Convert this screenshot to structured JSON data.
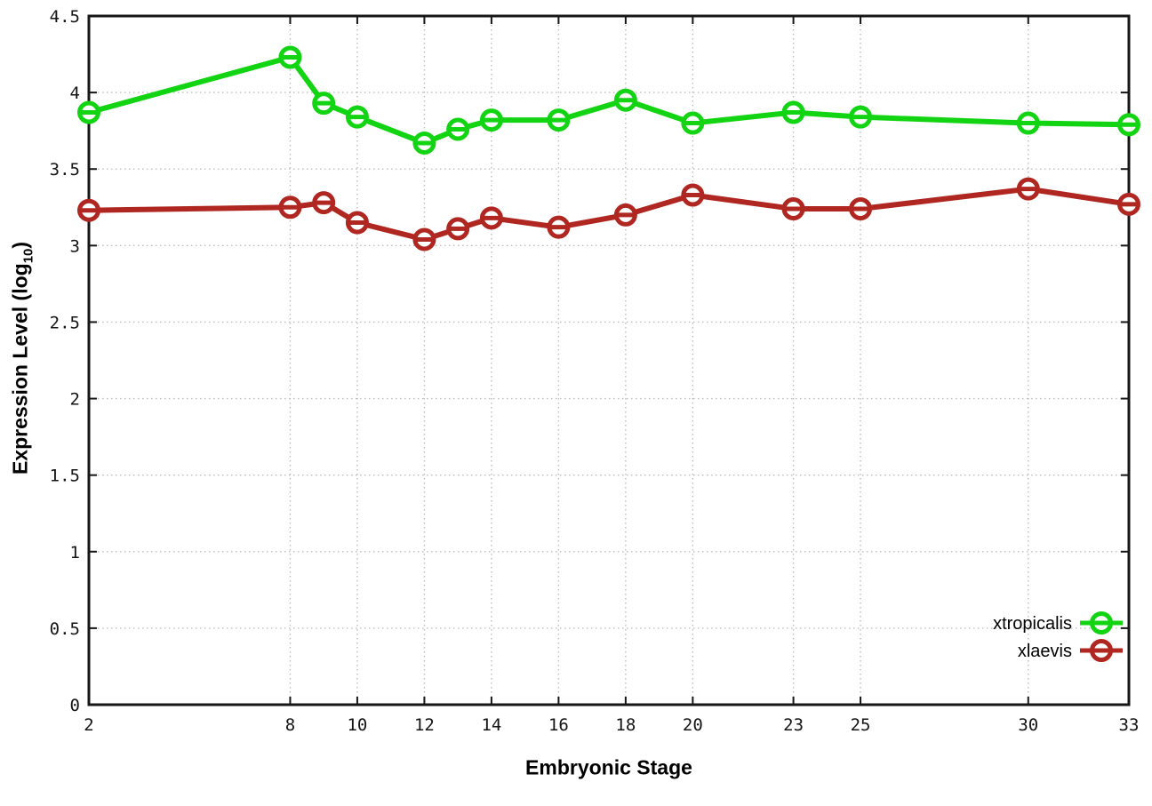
{
  "chart_data": {
    "type": "line",
    "title": "",
    "xlabel": "Embryonic Stage",
    "ylabel": "Expression Level (log10)",
    "ylabel_parts": {
      "prefix": "Expression Level (log",
      "sub": "10",
      "suffix": ")"
    },
    "x": [
      2,
      8,
      9,
      10,
      12,
      13,
      14,
      16,
      18,
      20,
      23,
      25,
      30,
      33
    ],
    "xlim": [
      2,
      33
    ],
    "ylim": [
      0,
      4.5
    ],
    "x_tick_values": [
      2,
      8,
      10,
      12,
      14,
      16,
      18,
      20,
      23,
      25,
      30,
      33
    ],
    "x_tick_labels": [
      "2",
      "8",
      "10",
      "12",
      "14",
      "16",
      "18",
      "20",
      "23",
      "25",
      "30",
      "33"
    ],
    "y_tick_values": [
      0,
      0.5,
      1,
      1.5,
      2,
      2.5,
      3,
      3.5,
      4,
      4.5
    ],
    "y_tick_labels": [
      "0",
      "0.5",
      "1",
      "1.5",
      "2",
      "2.5",
      "3",
      "3.5",
      "4",
      "4.5"
    ],
    "grid": true,
    "legend_position": "bottom-right",
    "marker": "circle-with-horizontal-bar",
    "series": [
      {
        "name": "xtropicalis",
        "color": "#12d412",
        "values": [
          3.87,
          4.23,
          3.93,
          3.84,
          3.67,
          3.76,
          3.82,
          3.82,
          3.95,
          3.8,
          3.87,
          3.84,
          3.8,
          3.79
        ]
      },
      {
        "name": "xlaevis",
        "color": "#b02721",
        "values": [
          3.23,
          3.25,
          3.28,
          3.15,
          3.04,
          3.11,
          3.18,
          3.12,
          3.2,
          3.33,
          3.24,
          3.24,
          3.37,
          3.27
        ]
      }
    ]
  },
  "colors": {
    "background": "#ffffff",
    "border": "#161616",
    "grid": "#bcbcbc",
    "text": "#141414"
  }
}
